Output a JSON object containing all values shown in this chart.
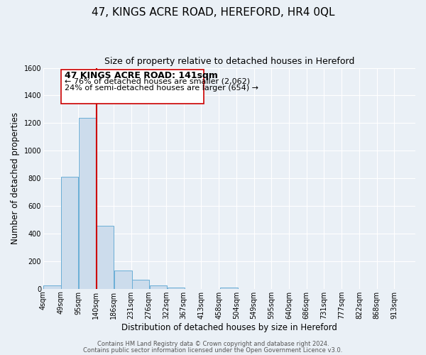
{
  "title": "47, KINGS ACRE ROAD, HEREFORD, HR4 0QL",
  "subtitle": "Size of property relative to detached houses in Hereford",
  "xlabel": "Distribution of detached houses by size in Hereford",
  "ylabel": "Number of detached properties",
  "bar_left_edges": [
    4,
    49,
    95,
    140,
    186,
    231,
    276,
    322,
    367,
    413,
    458,
    504,
    549,
    595,
    640,
    686,
    731,
    777,
    822,
    868
  ],
  "bar_heights": [
    25,
    810,
    1240,
    455,
    130,
    65,
    25,
    10,
    0,
    0,
    10,
    0,
    0,
    0,
    0,
    0,
    0,
    0,
    0,
    0
  ],
  "bin_width": 45,
  "bar_color": "#ccdcec",
  "bar_edge_color": "#6aaed6",
  "property_line_x": 141,
  "property_line_color": "#cc0000",
  "annotation_title": "47 KINGS ACRE ROAD: 141sqm",
  "annotation_line1": "← 76% of detached houses are smaller (2,062)",
  "annotation_line2": "24% of semi-detached houses are larger (654) →",
  "tick_labels": [
    "4sqm",
    "49sqm",
    "95sqm",
    "140sqm",
    "186sqm",
    "231sqm",
    "276sqm",
    "322sqm",
    "367sqm",
    "413sqm",
    "458sqm",
    "504sqm",
    "549sqm",
    "595sqm",
    "640sqm",
    "686sqm",
    "731sqm",
    "777sqm",
    "822sqm",
    "868sqm",
    "913sqm"
  ],
  "xlim_left": 4,
  "xlim_right": 958,
  "ylim": [
    0,
    1600
  ],
  "yticks": [
    0,
    200,
    400,
    600,
    800,
    1000,
    1200,
    1400,
    1600
  ],
  "footer_line1": "Contains HM Land Registry data © Crown copyright and database right 2024.",
  "footer_line2": "Contains public sector information licensed under the Open Government Licence v3.0.",
  "background_color": "#eaf0f6",
  "grid_color": "#ffffff",
  "title_fontsize": 11,
  "subtitle_fontsize": 9,
  "axis_label_fontsize": 8.5,
  "tick_fontsize": 7,
  "annotation_title_fontsize": 9,
  "annotation_text_fontsize": 8,
  "footer_fontsize": 6
}
